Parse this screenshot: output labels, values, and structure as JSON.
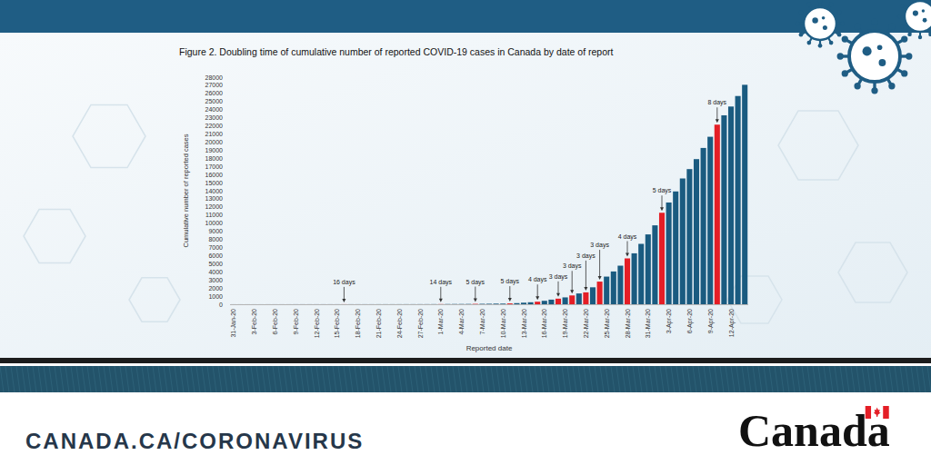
{
  "chart_data": {
    "type": "bar",
    "title": "Figure 2. Doubling time of cumulative number of reported COVID-19 cases in Canada by date of report",
    "x_label": "Reported date",
    "y_label": "Cumulative number of reported cases",
    "categories": [
      "31-Jan-20",
      null,
      null,
      "3-Feb-20",
      null,
      null,
      "6-Feb-20",
      null,
      null,
      "9-Feb-20",
      null,
      null,
      "12-Feb-20",
      null,
      null,
      "15-Feb-20",
      null,
      null,
      "18-Feb-20",
      null,
      null,
      "21-Feb-20",
      null,
      null,
      "24-Feb-20",
      null,
      null,
      "27-Feb-20",
      null,
      null,
      "1-Mar-20",
      null,
      null,
      "4-Mar-20",
      null,
      null,
      "7-Mar-20",
      null,
      null,
      "10-Mar-20",
      null,
      null,
      "13-Mar-20",
      null,
      null,
      "16-Mar-20",
      null,
      null,
      "19-Mar-20",
      null,
      null,
      "22-Mar-20",
      null,
      null,
      "25-Mar-20",
      null,
      null,
      "28-Mar-20",
      null,
      null,
      "31-Mar-20",
      null,
      null,
      "3-Apr-20",
      null,
      null,
      "6-Apr-20",
      null,
      null,
      "9-Apr-20",
      null,
      null,
      "12-Apr-20",
      null,
      null
    ],
    "values": [
      4,
      4,
      4,
      4,
      4,
      5,
      5,
      5,
      5,
      7,
      7,
      7,
      7,
      7,
      7,
      7,
      8,
      8,
      8,
      8,
      8,
      9,
      9,
      9,
      10,
      11,
      11,
      13,
      14,
      16,
      20,
      27,
      30,
      33,
      37,
      46,
      54,
      62,
      77,
      79,
      103,
      138,
      193,
      244,
      313,
      424,
      569,
      690,
      846,
      1087,
      1331,
      1468,
      2091,
      2792,
      3409,
      4043,
      4757,
      5655,
      6280,
      7448,
      8612,
      9731,
      11283,
      12549,
      13912,
      15512,
      16667,
      17897,
      19274,
      20654,
      22148,
      23301,
      24383,
      25680,
      27063
    ],
    "colors": [
      "#1a5b80",
      "#1a5b80",
      "#1a5b80",
      "#1a5b80",
      "#1a5b80",
      "#1a5b80",
      "#1a5b80",
      "#1a5b80",
      "#1a5b80",
      "#1a5b80",
      "#1a5b80",
      "#1a5b80",
      "#1a5b80",
      "#1a5b80",
      "#1a5b80",
      "#1a5b80",
      "#e41e26",
      "#1a5b80",
      "#1a5b80",
      "#1a5b80",
      "#1a5b80",
      "#1a5b80",
      "#1a5b80",
      "#1a5b80",
      "#1a5b80",
      "#1a5b80",
      "#1a5b80",
      "#1a5b80",
      "#1a5b80",
      "#1a5b80",
      "#e41e26",
      "#1a5b80",
      "#1a5b80",
      "#1a5b80",
      "#1a5b80",
      "#e41e26",
      "#1a5b80",
      "#1a5b80",
      "#1a5b80",
      "#1a5b80",
      "#e41e26",
      "#1a5b80",
      "#1a5b80",
      "#1a5b80",
      "#e41e26",
      "#1a5b80",
      "#1a5b80",
      "#e41e26",
      "#1a5b80",
      "#e41e26",
      "#1a5b80",
      "#e41e26",
      "#1a5b80",
      "#e41e26",
      "#1a5b80",
      "#1a5b80",
      "#1a5b80",
      "#e41e26",
      "#1a5b80",
      "#1a5b80",
      "#1a5b80",
      "#1a5b80",
      "#e41e26",
      "#1a5b80",
      "#1a5b80",
      "#1a5b80",
      "#1a5b80",
      "#1a5b80",
      "#1a5b80",
      "#1a5b80",
      "#e41e26",
      "#1a5b80",
      "#1a5b80",
      "#1a5b80",
      "#1a5b80"
    ],
    "ylim": [
      0,
      28000
    ],
    "yticks": [
      0,
      1000,
      2000,
      3000,
      4000,
      5000,
      6000,
      7000,
      8000,
      9000,
      10000,
      11000,
      12000,
      13000,
      14000,
      15000,
      16000,
      17000,
      18000,
      19000,
      20000,
      21000,
      22000,
      23000,
      24000,
      25000,
      26000,
      27000,
      28000
    ],
    "grid": false,
    "annotations": [
      {
        "text": "16 days",
        "index": 16
      },
      {
        "text": "14 days",
        "index": 30
      },
      {
        "text": "5 days",
        "index": 35
      },
      {
        "text": "5 days",
        "index": 40
      },
      {
        "text": "4 days",
        "index": 44
      },
      {
        "text": "3 days",
        "index": 47
      },
      {
        "text": "3 days",
        "index": 49
      },
      {
        "text": "3 days",
        "index": 51
      },
      {
        "text": "3 days",
        "index": 53
      },
      {
        "text": "4 days",
        "index": 57
      },
      {
        "text": "5 days",
        "index": 62
      },
      {
        "text": "8 days",
        "index": 70
      }
    ]
  },
  "footer": {
    "url": "CANADA.CA/CORONAVIRUS",
    "wordmark": "Canada"
  }
}
